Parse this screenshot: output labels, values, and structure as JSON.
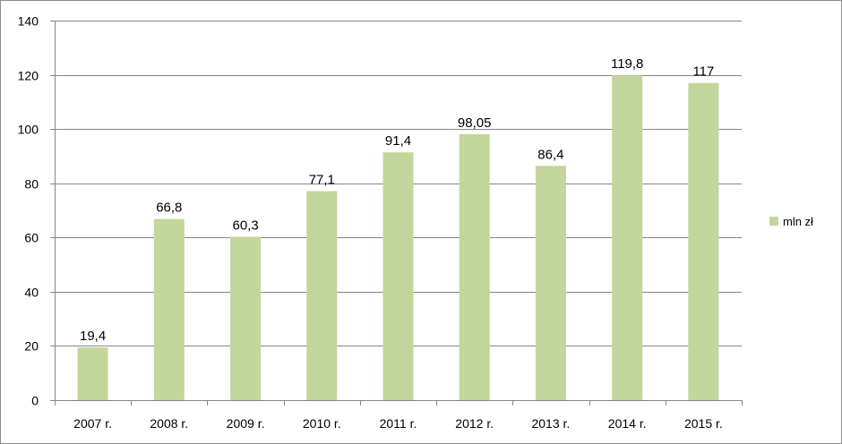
{
  "chart_data": {
    "type": "bar",
    "title": "",
    "xlabel": "",
    "ylabel": "",
    "categories": [
      "2007 r.",
      "2008 r.",
      "2009 r.",
      "2010 r.",
      "2011 r.",
      "2012 r.",
      "2013 r.",
      "2014 r.",
      "2015 r."
    ],
    "series": [
      {
        "name": "mln zł",
        "values": [
          19.4,
          66.8,
          60.3,
          77.1,
          91.4,
          98.05,
          86.4,
          119.8,
          117
        ],
        "data_labels": [
          "19,4",
          "66,8",
          "60,3",
          "77,1",
          "91,4",
          "98,05",
          "86,4",
          "119,8",
          "117"
        ],
        "color": "#c3d69b"
      }
    ],
    "ylim": [
      0,
      140
    ],
    "yticks": [
      0,
      20,
      40,
      60,
      80,
      100,
      120,
      140
    ],
    "grid": true,
    "legend_position": "right"
  }
}
